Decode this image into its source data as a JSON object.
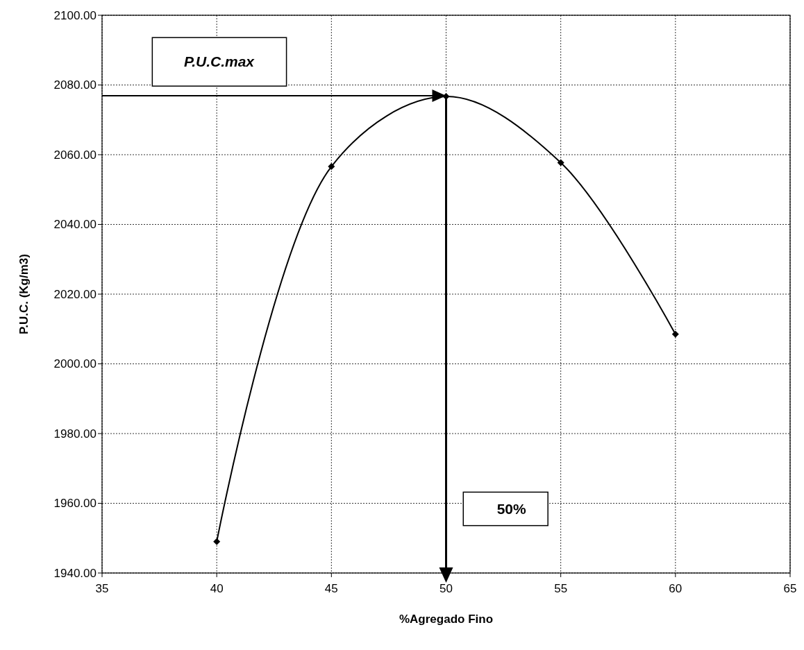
{
  "chart_data": {
    "type": "line",
    "xlabel": "%Agregado Fino",
    "ylabel": "P.U.C. (Kg/m3)",
    "x": [
      40,
      45,
      50,
      55,
      60
    ],
    "series": [
      {
        "color": "#000000",
        "values": [
          1949,
          2056.6,
          2076.7,
          2057.7,
          2008.5
        ]
      }
    ],
    "xlim": [
      35,
      65
    ],
    "xticks": [
      35,
      40,
      45,
      50,
      55,
      60,
      65
    ],
    "ylim": [
      1940,
      2100
    ],
    "yticks": [
      {
        "value": 1940,
        "label": "1940.00"
      },
      {
        "value": 1960,
        "label": "1960.00"
      },
      {
        "value": 1980,
        "label": "1980.00"
      },
      {
        "value": 2000,
        "label": "2000.00"
      },
      {
        "value": 2020,
        "label": "2020.00"
      },
      {
        "value": 2040,
        "label": "2040.00"
      },
      {
        "value": 2060,
        "label": "2060.00"
      },
      {
        "value": 2080,
        "label": "2080.00"
      },
      {
        "value": 2100,
        "label": "2100.00"
      }
    ],
    "grid": true,
    "marker": "diamond",
    "line_style": "solid",
    "annotations": [
      "P.U.C.max",
      "50%"
    ]
  }
}
